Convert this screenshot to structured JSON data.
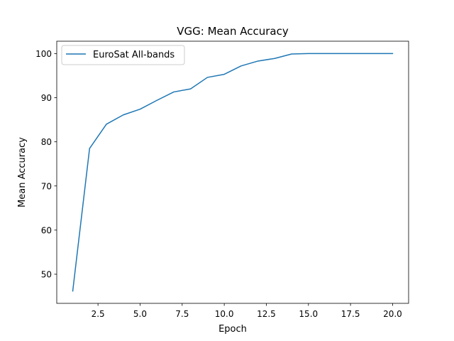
{
  "chart_data": {
    "type": "line",
    "title": "VGG: Mean Accuracy",
    "xlabel": "Epoch",
    "ylabel": "Mean Accuracy",
    "xlim": [
      0.05,
      20.95
    ],
    "ylim": [
      43.4,
      102.8
    ],
    "xticks": [
      2.5,
      5.0,
      7.5,
      10.0,
      12.5,
      15.0,
      17.5,
      20.0
    ],
    "xtick_labels": [
      "2.5",
      "5.0",
      "7.5",
      "10.0",
      "12.5",
      "15.0",
      "17.5",
      "20.0"
    ],
    "yticks": [
      50,
      60,
      70,
      80,
      90,
      100
    ],
    "ytick_labels": [
      "50",
      "60",
      "70",
      "80",
      "90",
      "100"
    ],
    "grid": false,
    "legend_position": "upper-left",
    "series": [
      {
        "name": "EuroSat All-bands",
        "color": "#1f77b4",
        "x": [
          1,
          2,
          3,
          4,
          5,
          6,
          7,
          8,
          9,
          10,
          11,
          12,
          13,
          14,
          15,
          16,
          17,
          18,
          19,
          20
        ],
        "y": [
          46.2,
          78.5,
          84.0,
          86.1,
          87.4,
          89.4,
          91.3,
          92.0,
          94.6,
          95.3,
          97.2,
          98.3,
          98.9,
          99.9,
          100.0,
          100.0,
          100.0,
          100.0,
          100.0,
          100.0
        ]
      }
    ]
  }
}
